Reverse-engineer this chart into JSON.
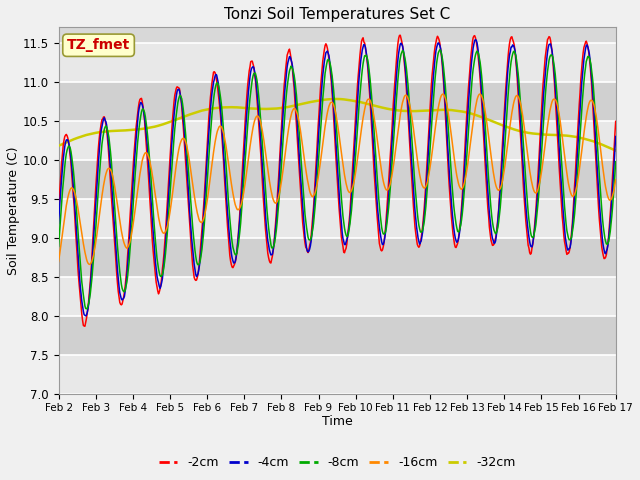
{
  "title": "Tonzi Soil Temperatures Set C",
  "xlabel": "Time",
  "ylabel": "Soil Temperature (C)",
  "ylim": [
    7.0,
    11.7
  ],
  "yticks": [
    7.0,
    7.5,
    8.0,
    8.5,
    9.0,
    9.5,
    10.0,
    10.5,
    11.0,
    11.5
  ],
  "colors": {
    "-2cm": "#ff0000",
    "-4cm": "#0000cc",
    "-8cm": "#00aa00",
    "-16cm": "#ff8800",
    "-32cm": "#cccc00"
  },
  "legend_labels": [
    "-2cm",
    "-4cm",
    "-8cm",
    "-16cm",
    "-32cm"
  ],
  "annotation_text": "TZ_fmet",
  "annotation_color": "#cc0000",
  "annotation_bg": "#ffffcc",
  "plot_bg": "#d8d8d8",
  "fig_bg": "#f0f0f0",
  "n_days": 15,
  "samples_per_day": 48
}
